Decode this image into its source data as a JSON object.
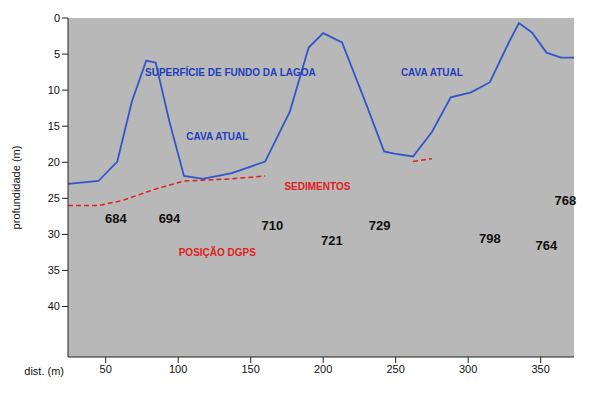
{
  "chart_data": {
    "type": "line",
    "x_label": "dist. (m)",
    "y_label": "profundidade (m)",
    "xlim": [
      24,
      373
    ],
    "xticks": [
      50,
      100,
      150,
      200,
      250,
      300,
      350
    ],
    "ylim": [
      0,
      47
    ],
    "yticks": [
      0,
      5,
      10,
      15,
      20,
      25,
      30,
      35,
      40
    ],
    "y_reversed": true,
    "grid": false,
    "series": [
      {
        "name": "SUPERFÍCIE DE FUNDO DA LAGOA",
        "color": "#3355cc",
        "line_style": "solid",
        "x": [
          24,
          45,
          58,
          68,
          78,
          84.5,
          94,
          104,
          117,
          137,
          160,
          177,
          190,
          200,
          213,
          229,
          242,
          249,
          262,
          275,
          288,
          302,
          315,
          328,
          335,
          344,
          354,
          364,
          373
        ],
        "values": [
          23,
          22.6,
          19.9,
          11.6,
          5.9,
          6.2,
          14.4,
          21.9,
          22.3,
          21.5,
          19.9,
          13,
          4.1,
          2.1,
          3.4,
          11.6,
          18.5,
          18.8,
          19.2,
          15.8,
          11,
          10.3,
          8.9,
          3.4,
          0.7,
          2,
          4.8,
          5.5,
          5.5
        ]
      },
      {
        "name": "SEDIMENTOS",
        "color": "#e02020",
        "line_style": "dashed",
        "x": [
          24,
          45,
          61.5,
          84.5,
          104,
          137,
          160,
          245,
          262,
          275
        ],
        "values": [
          26,
          26,
          25.3,
          23.7,
          22.6,
          22.3,
          21.9,
          null,
          19.9,
          19.5
        ]
      }
    ],
    "annotations": [
      {
        "text": "SUPERFÍCIE DE FUNDO DA LAGOA",
        "x": 136,
        "y": 7.5,
        "color": "#1f3fbf"
      },
      {
        "text": "CAVA ATUAL",
        "x": 127,
        "y": 16.4,
        "color": "#1f3fbf"
      },
      {
        "text": "CAVA ATUAL",
        "x": 275,
        "y": 7.5,
        "color": "#1f3fbf"
      },
      {
        "text": "SEDIMENTOS",
        "x": 196,
        "y": 23.3,
        "color": "#e02020"
      },
      {
        "text": "POSIÇÃO DGPS",
        "x": 127,
        "y": 32.5,
        "color": "#e02020"
      },
      {
        "text": "684",
        "x": 57,
        "y": 27.8,
        "color": "#111111"
      },
      {
        "text": "694",
        "x": 94,
        "y": 27.8,
        "color": "#111111"
      },
      {
        "text": "710",
        "x": 165,
        "y": 28.8,
        "color": "#111111"
      },
      {
        "text": "721",
        "x": 206,
        "y": 30.8,
        "color": "#111111"
      },
      {
        "text": "729",
        "x": 239,
        "y": 28.8,
        "color": "#111111"
      },
      {
        "text": "798",
        "x": 315,
        "y": 30.5,
        "color": "#111111"
      },
      {
        "text": "764",
        "x": 354,
        "y": 31.5,
        "color": "#111111"
      },
      {
        "text": "768",
        "x": 367,
        "y": 25.3,
        "color": "#111111"
      }
    ]
  }
}
